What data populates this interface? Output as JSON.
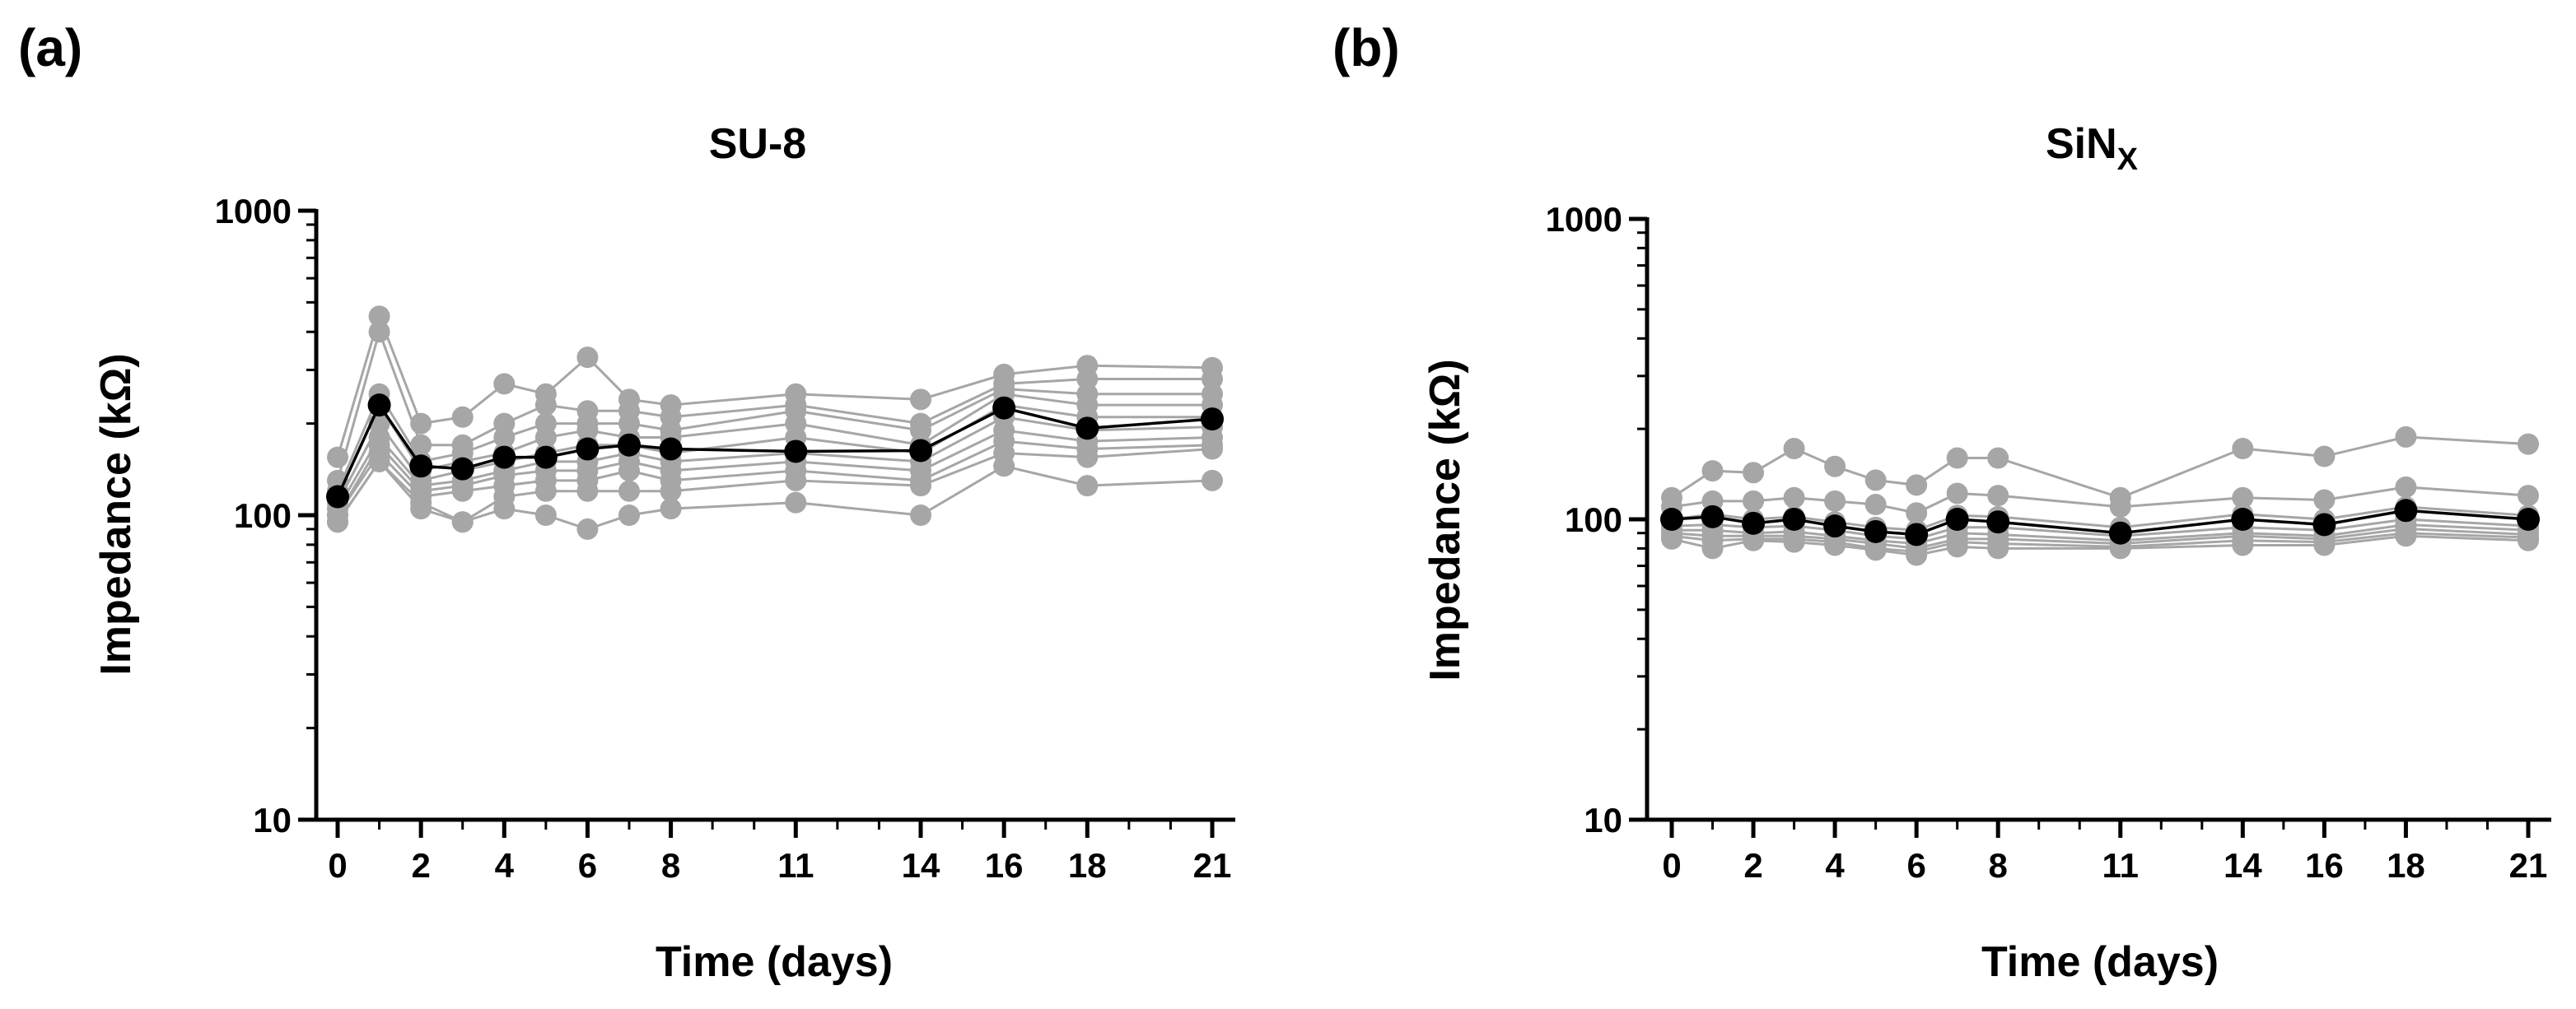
{
  "panels": [
    {
      "letter": "(a)"
    },
    {
      "letter": "(b)"
    }
  ],
  "chart_data": [
    {
      "type": "line",
      "title": "SU-8",
      "title_sub": "",
      "xlabel": "Time (days)",
      "ylabel": "Impedance (kΩ)",
      "yscale": "log",
      "ylim": [
        10,
        1000
      ],
      "yticks": [
        10,
        100,
        1000
      ],
      "xlim": [
        0,
        21
      ],
      "xticks": [
        0,
        2,
        4,
        6,
        8,
        11,
        14,
        16,
        18,
        21
      ],
      "x": [
        0,
        1,
        2,
        3,
        4,
        5,
        6,
        7,
        8,
        11,
        14,
        16,
        18,
        21
      ],
      "series_color": "#a6a6a6",
      "mean_color": "#000000",
      "series": [
        {
          "values": [
            155,
            450,
            200,
            210,
            270,
            250,
            330,
            240,
            230,
            250,
            240,
            290,
            310,
            305
          ]
        },
        {
          "values": [
            130,
            400,
            170,
            170,
            200,
            230,
            220,
            220,
            210,
            230,
            200,
            270,
            280,
            280
          ]
        },
        {
          "values": [
            120,
            250,
            150,
            160,
            180,
            200,
            200,
            200,
            190,
            220,
            190,
            260,
            250,
            250
          ]
        },
        {
          "values": [
            115,
            230,
            140,
            150,
            160,
            180,
            190,
            180,
            180,
            200,
            170,
            250,
            230,
            230
          ]
        },
        {
          "values": [
            110,
            200,
            130,
            140,
            150,
            160,
            170,
            170,
            160,
            180,
            160,
            230,
            210,
            210
          ]
        },
        {
          "values": [
            105,
            180,
            125,
            130,
            140,
            150,
            150,
            160,
            150,
            160,
            150,
            210,
            190,
            195
          ]
        },
        {
          "values": [
            100,
            170,
            120,
            125,
            135,
            140,
            140,
            150,
            140,
            150,
            140,
            190,
            175,
            180
          ]
        },
        {
          "values": [
            100,
            160,
            115,
            120,
            125,
            130,
            130,
            140,
            130,
            140,
            130,
            175,
            165,
            170
          ]
        },
        {
          "values": [
            95,
            150,
            110,
            95,
            115,
            120,
            120,
            120,
            120,
            130,
            125,
            160,
            155,
            165
          ]
        },
        {
          "values": [
            95,
            150,
            105,
            95,
            105,
            100,
            90,
            100,
            105,
            110,
            100,
            145,
            125,
            130
          ]
        }
      ],
      "mean": {
        "values": [
          115,
          230,
          145,
          142,
          155,
          155,
          165,
          170,
          165,
          162,
          163,
          225,
          193,
          207
        ]
      }
    },
    {
      "type": "line",
      "title": "SiN",
      "title_sub": "X",
      "xlabel": "Time (days)",
      "ylabel": "Impedance (kΩ)",
      "yscale": "log",
      "ylim": [
        10,
        1000
      ],
      "yticks": [
        10,
        100,
        1000
      ],
      "xlim": [
        0,
        21
      ],
      "xticks": [
        0,
        2,
        4,
        6,
        8,
        11,
        14,
        16,
        18,
        21
      ],
      "x": [
        0,
        1,
        2,
        3,
        4,
        5,
        6,
        7,
        8,
        11,
        14,
        16,
        18,
        21
      ],
      "series_color": "#a6a6a6",
      "mean_color": "#000000",
      "series": [
        {
          "values": [
            118,
            145,
            143,
            172,
            150,
            135,
            130,
            160,
            160,
            118,
            172,
            162,
            188,
            178
          ]
        },
        {
          "values": [
            110,
            115,
            115,
            118,
            115,
            112,
            105,
            122,
            120,
            110,
            118,
            116,
            128,
            120
          ]
        },
        {
          "values": [
            100,
            104,
            100,
            102,
            98,
            94,
            92,
            103,
            102,
            94,
            104,
            100,
            110,
            103
          ]
        },
        {
          "values": [
            95,
            96,
            94,
            95,
            92,
            88,
            86,
            94,
            94,
            88,
            94,
            92,
            100,
            95
          ]
        },
        {
          "values": [
            92,
            92,
            90,
            91,
            88,
            85,
            83,
            90,
            89,
            85,
            90,
            88,
            96,
            92
          ]
        },
        {
          "values": [
            90,
            88,
            88,
            88,
            86,
            83,
            80,
            86,
            86,
            83,
            88,
            86,
            93,
            89
          ]
        },
        {
          "values": [
            88,
            85,
            86,
            86,
            84,
            80,
            78,
            84,
            83,
            81,
            85,
            84,
            90,
            87
          ]
        },
        {
          "values": [
            86,
            80,
            85,
            84,
            82,
            79,
            76,
            81,
            80,
            80,
            82,
            82,
            88,
            85
          ]
        }
      ],
      "mean": {
        "values": [
          100,
          102,
          97,
          100,
          95,
          91,
          89,
          100,
          98,
          90,
          100,
          96,
          107,
          100
        ]
      }
    }
  ]
}
